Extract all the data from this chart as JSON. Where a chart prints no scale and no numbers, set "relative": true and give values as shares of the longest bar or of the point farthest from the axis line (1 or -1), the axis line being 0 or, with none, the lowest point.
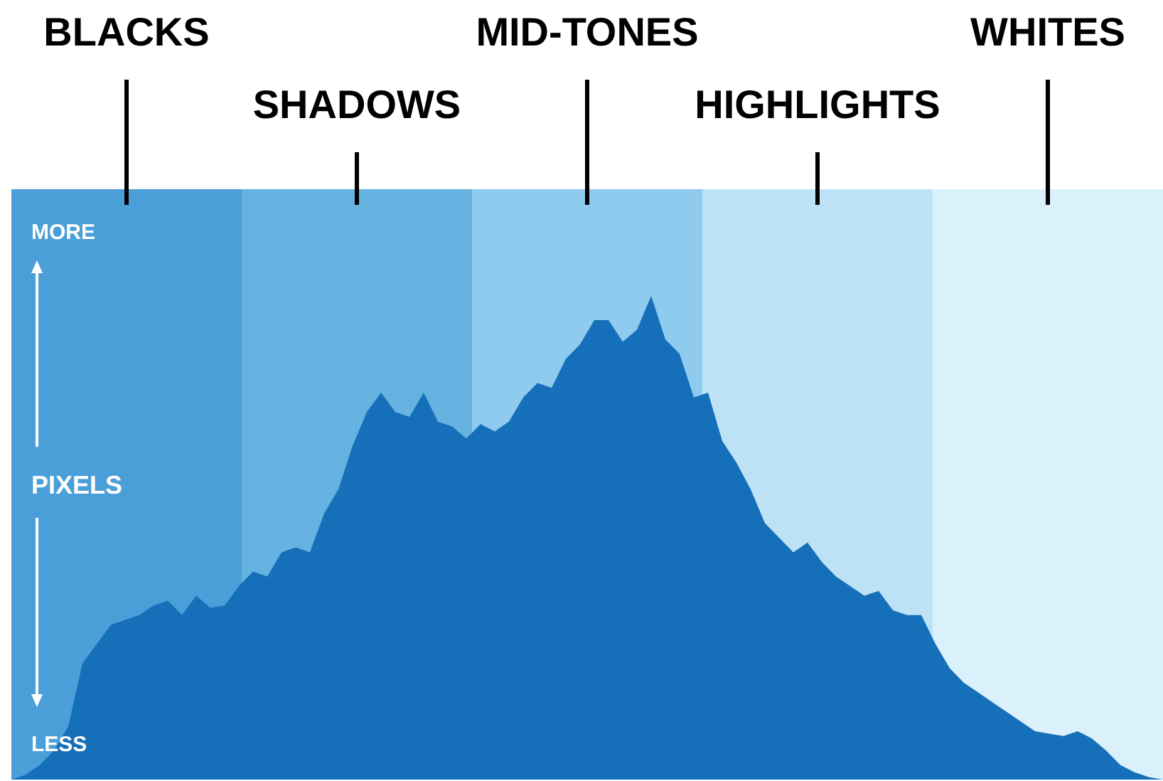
{
  "chart_data": {
    "type": "area",
    "relative": true,
    "ylabel": "PIXELS",
    "annotations": [
      "BLACKS",
      "SHADOWS",
      "MID-TONES",
      "HIGHLIGHTS",
      "WHITES",
      "MORE",
      "LESS"
    ],
    "categories": [
      null,
      null,
      null,
      null,
      null,
      null,
      null,
      null,
      null,
      null,
      null,
      null,
      null,
      null,
      null,
      null,
      null,
      null,
      null,
      null,
      null,
      null,
      null,
      null,
      null,
      null,
      null,
      null,
      null,
      null,
      null,
      null,
      null,
      null,
      null,
      null,
      null,
      null,
      null,
      null,
      null,
      null,
      null,
      null,
      null,
      null,
      null,
      null,
      null,
      null,
      null,
      null,
      null,
      null,
      null,
      null,
      null,
      null,
      null,
      null,
      null,
      null,
      null,
      null,
      null,
      null,
      null,
      null,
      null,
      null,
      null,
      null,
      null,
      null,
      null,
      null,
      null,
      null,
      null,
      null,
      null,
      null
    ],
    "series": [
      {
        "color": "#1670b9",
        "values": [
          0,
          0.01,
          0.03,
          0.06,
          0.11,
          0.24,
          0.28,
          0.32,
          0.33,
          0.34,
          0.36,
          0.37,
          0.34,
          0.38,
          0.355,
          0.36,
          0.4,
          0.43,
          0.42,
          0.47,
          0.48,
          0.47,
          0.55,
          0.6,
          0.69,
          0.76,
          0.8,
          0.76,
          0.75,
          0.8,
          0.74,
          0.73,
          0.705,
          0.735,
          0.72,
          0.74,
          0.79,
          0.82,
          0.81,
          0.87,
          0.9,
          0.95,
          0.95,
          0.905,
          0.93,
          1,
          0.91,
          0.88,
          0.79,
          0.8,
          0.7,
          0.655,
          0.6,
          0.53,
          0.5,
          0.47,
          0.49,
          0.45,
          0.42,
          0.4,
          0.38,
          0.39,
          0.35,
          0.34,
          0.34,
          0.28,
          0.23,
          0.2,
          0.18,
          0.16,
          0.14,
          0.12,
          0.1,
          0.095,
          0.09,
          0.1,
          0.085,
          0.06,
          0.03,
          0.015,
          0.005,
          0
        ]
      }
    ]
  }
}
